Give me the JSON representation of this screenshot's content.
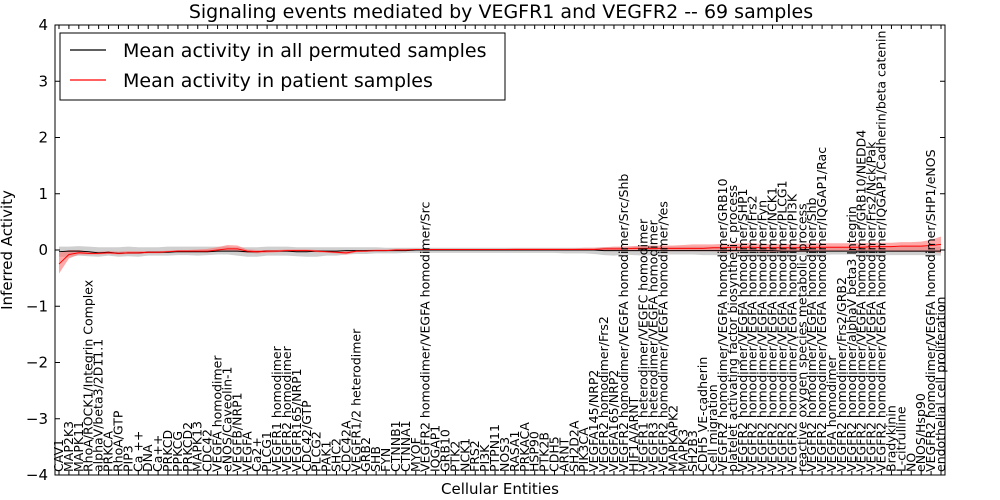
{
  "chart_data": {
    "type": "line",
    "title": "Signaling events mediated by VEGFR1 and VEGFR2 -- 69 samples",
    "xlabel": "Cellular Entities",
    "ylabel": "Inferred Activity",
    "ylim": [
      -4,
      4
    ],
    "yticks": [
      -4,
      -3,
      -2,
      -1,
      0,
      1,
      2,
      3,
      4
    ],
    "grid": false,
    "legend_position": "top-left",
    "colors": {
      "permuted_line": "#000000",
      "patient_line": "#ff0000",
      "permuted_band": "#bfbfbf",
      "patient_band": "#ff7070"
    },
    "categories": [
      "CAV1",
      "MAP2K3",
      "MAPK11",
      "RhoA/ROCK1/Integrin Complex",
      "alphaV/beta3/2D11.1",
      "PRKCA",
      "RhoA/GTP",
      "PIP3",
      "Ca ++",
      "DNA",
      "Ca++",
      "PRKCD",
      "PPKCG",
      "PRKCD2",
      "MAPK13",
      "CDC42",
      "VEGFA homodimer",
      "eNOS/Caveolin-1",
      "VEGFB/NRP1",
      "VEGFA",
      "Ca2+",
      "PLCG1",
      "VEGFR1 homodimer",
      "VEGFR2 homodimer",
      "VEGFR165/NRP1",
      "CDC42/GTP",
      "PLCG2",
      "PAK1",
      "SHC2",
      "CDC42A",
      "VEGFR1/2 heterodimer",
      "GRB2",
      "SHB",
      "FYN",
      "CTNNB1",
      "CTNNA1",
      "MYOF",
      "VEGFR2 homodimer/VEGFA homodimer/Src",
      "IQGAP1",
      "GRB10",
      "PTK2",
      "NCK1",
      "FRS2",
      "PI3K",
      "PTPN11",
      "NOS3",
      "RASA1",
      "PRKACA",
      "HSP90",
      "PTK2B",
      "CDH5",
      "ARNT",
      "SH2D2A",
      "PIK3CA",
      "VEGFA145/NRP2",
      "VEGFR2 homodimer/Frs2",
      "VEGFA165/NRP2",
      "VEGFR2 homodimer/VEGFA homodimer/Src/Shb",
      "HIF1A/ARNT",
      "VEGFR1 heterodimer/VEGFC homodimer",
      "VEGFR3 heterodimer/VEGFA homodimer",
      "VEGFR2 homodimer/VEGFA homodimer/Yes",
      "MAPKAPK2",
      "MAPK3",
      "SH2B3",
      "CDH5 VE-cadherin",
      "Cell migration",
      "VEGFR2 homodimer/VEGFA homodimer/GRB10",
      "platelet activating factor biosynthetic process",
      "VEGFR2 homodimer/VEGFA homodimer/SHP1",
      "VEGFR2 homodimer/VEGFA homodimer/Frs2",
      "VEGFR2 homodimer/VEGFA homodimer/Fyn",
      "VEGFR2 homodimer/VEGFA homodimer/NCK1",
      "VEGFR2 homodimer/VEGFA homodimer/PLCG1",
      "VEGFR2 homodimer/VEGFA homodimer/PI3K",
      "reactive oxygen species metabolic process",
      "VEGFR2 homodimer/VEGFA homodimer/Shb",
      "VEGFR2 homodimer/VEGFA homodimer/IQGAP1/Rac",
      "VEGFA homodimer",
      "VEGFR2 homodimer/Frs2/GRB2",
      "VEGFR2 homodimer/alphaV beta3 Integrin",
      "VEGFR2 homodimer/VEGFA homodimer/GRB10/NEDD4",
      "VEGFR2 homodimer/VEGFA homodimer/Frs2/Nck/Pak",
      "VEGFR2 homodimer/VEGFA homodimer/IQGAP1/Cadherin/beta catenin",
      "Bradykinin",
      "L-citrulline",
      "NO",
      "eNOS/Hsp90",
      "VEGFR2 homodimer/VEGFA homodimer/SHP1/eNOS",
      "endothelial cell proliferation"
    ],
    "series": [
      {
        "name": "Mean activity in all permuted samples",
        "values": [
          -0.03,
          -0.02,
          -0.02,
          -0.03,
          -0.05,
          -0.04,
          -0.06,
          -0.05,
          -0.05,
          -0.04,
          -0.04,
          -0.04,
          -0.03,
          -0.03,
          -0.03,
          -0.03,
          -0.02,
          -0.02,
          -0.02,
          -0.03,
          -0.03,
          -0.02,
          -0.02,
          -0.02,
          -0.03,
          -0.03,
          -0.02,
          -0.02,
          -0.02,
          -0.01,
          -0.01,
          -0.01,
          -0.01,
          -0.01,
          -0.01,
          -0.01,
          0.0,
          0.0,
          0.0,
          0.0,
          0.0,
          0.0,
          0.0,
          0.0,
          0.0,
          0.0,
          0.0,
          0.0,
          0.0,
          0.0,
          0.0,
          0.0,
          0.0,
          0.0,
          0.0,
          -0.01,
          -0.01,
          -0.01,
          -0.01,
          -0.01,
          -0.01,
          -0.01,
          -0.01,
          -0.01,
          -0.01,
          -0.01,
          -0.01,
          -0.01,
          -0.01,
          -0.01,
          -0.01,
          -0.01,
          -0.01,
          -0.02,
          -0.02,
          -0.02,
          -0.02,
          -0.02,
          -0.02,
          -0.02,
          -0.02,
          -0.02,
          -0.02,
          -0.02,
          -0.02,
          -0.02,
          -0.02,
          -0.02,
          -0.02,
          -0.02
        ]
      },
      {
        "name": "Mean activity in patient samples",
        "values": [
          -0.25,
          -0.08,
          -0.05,
          -0.06,
          -0.06,
          -0.05,
          -0.06,
          -0.05,
          -0.05,
          -0.04,
          -0.04,
          -0.03,
          -0.02,
          -0.02,
          -0.02,
          -0.02,
          0.0,
          0.02,
          0.02,
          -0.02,
          -0.03,
          -0.02,
          -0.02,
          -0.01,
          -0.01,
          -0.01,
          -0.02,
          -0.03,
          -0.04,
          -0.05,
          -0.02,
          -0.02,
          -0.01,
          -0.01,
          0.0,
          0.0,
          0.01,
          0.01,
          0.01,
          0.01,
          0.01,
          0.01,
          0.01,
          0.01,
          0.01,
          0.01,
          0.01,
          0.01,
          0.01,
          0.01,
          0.01,
          0.01,
          0.01,
          0.01,
          0.01,
          0.02,
          0.02,
          0.02,
          0.03,
          0.03,
          0.03,
          0.03,
          0.03,
          0.03,
          0.03,
          0.03,
          0.04,
          0.04,
          0.05,
          0.05,
          0.05,
          0.04,
          0.04,
          0.04,
          0.04,
          0.04,
          0.05,
          0.05,
          0.05,
          0.05,
          0.05,
          0.05,
          0.06,
          0.06,
          0.06,
          0.07,
          0.07,
          0.07,
          0.08,
          0.1
        ]
      }
    ],
    "bands": {
      "permuted_low": [
        -0.12,
        -0.12,
        -0.1,
        -0.11,
        -0.12,
        -0.1,
        -0.12,
        -0.11,
        -0.12,
        -0.1,
        -0.1,
        -0.1,
        -0.09,
        -0.09,
        -0.1,
        -0.09,
        -0.08,
        -0.08,
        -0.1,
        -0.12,
        -0.12,
        -0.1,
        -0.1,
        -0.1,
        -0.11,
        -0.12,
        -0.12,
        -0.1,
        -0.1,
        -0.08,
        -0.07,
        -0.07,
        -0.06,
        -0.06,
        -0.06,
        -0.05,
        -0.05,
        -0.05,
        -0.05,
        -0.05,
        -0.05,
        -0.05,
        -0.05,
        -0.05,
        -0.05,
        -0.05,
        -0.05,
        -0.05,
        -0.05,
        -0.05,
        -0.05,
        -0.06,
        -0.06,
        -0.06,
        -0.07,
        -0.09,
        -0.1,
        -0.08,
        -0.09,
        -0.1,
        -0.09,
        -0.08,
        -0.08,
        -0.08,
        -0.08,
        -0.09,
        -0.09,
        -0.09,
        -0.08,
        -0.08,
        -0.09,
        -0.09,
        -0.09,
        -0.1,
        -0.08,
        -0.09,
        -0.1,
        -0.09,
        -0.08,
        -0.08,
        -0.08,
        -0.09,
        -0.09,
        -0.09,
        -0.09,
        -0.09,
        -0.09,
        -0.09,
        -0.09,
        -0.1
      ],
      "permuted_high": [
        0.06,
        0.06,
        0.07,
        0.06,
        0.05,
        0.05,
        0.05,
        0.06,
        0.05,
        0.05,
        0.05,
        0.06,
        0.06,
        0.06,
        0.06,
        0.06,
        0.06,
        0.06,
        0.05,
        0.05,
        0.05,
        0.06,
        0.06,
        0.06,
        0.05,
        0.05,
        0.05,
        0.05,
        0.05,
        0.05,
        0.05,
        0.05,
        0.05,
        0.04,
        0.04,
        0.04,
        0.04,
        0.04,
        0.04,
        0.04,
        0.04,
        0.04,
        0.04,
        0.04,
        0.04,
        0.04,
        0.04,
        0.04,
        0.04,
        0.04,
        0.04,
        0.04,
        0.04,
        0.04,
        0.04,
        0.05,
        0.05,
        0.06,
        0.06,
        0.06,
        0.06,
        0.06,
        0.06,
        0.06,
        0.06,
        0.06,
        0.06,
        0.06,
        0.06,
        0.06,
        0.06,
        0.06,
        0.06,
        0.06,
        0.06,
        0.06,
        0.06,
        0.06,
        0.06,
        0.06,
        0.06,
        0.06,
        0.06,
        0.06,
        0.06,
        0.06,
        0.06,
        0.06,
        0.06,
        0.06
      ],
      "patient_low": [
        -0.42,
        -0.15,
        -0.08,
        -0.08,
        -0.08,
        -0.07,
        -0.08,
        -0.07,
        -0.07,
        -0.06,
        -0.06,
        -0.05,
        -0.04,
        -0.04,
        -0.04,
        -0.04,
        -0.03,
        -0.02,
        -0.03,
        -0.05,
        -0.06,
        -0.05,
        -0.04,
        -0.03,
        -0.03,
        -0.03,
        -0.04,
        -0.05,
        -0.06,
        -0.08,
        -0.04,
        -0.03,
        -0.02,
        -0.02,
        -0.01,
        -0.01,
        0.0,
        0.0,
        0.0,
        0.0,
        0.0,
        0.0,
        0.0,
        0.0,
        0.0,
        0.0,
        0.0,
        0.0,
        0.0,
        0.0,
        0.0,
        0.0,
        0.0,
        0.0,
        0.0,
        -0.01,
        -0.01,
        -0.01,
        -0.01,
        -0.02,
        -0.01,
        -0.02,
        -0.02,
        -0.02,
        -0.02,
        -0.02,
        -0.02,
        -0.03,
        -0.03,
        -0.02,
        -0.02,
        -0.03,
        -0.03,
        -0.03,
        -0.03,
        -0.03,
        -0.03,
        -0.02,
        -0.02,
        -0.02,
        -0.02,
        -0.02,
        -0.02,
        -0.02,
        -0.03,
        -0.03,
        -0.03,
        -0.03,
        -0.03,
        -0.05
      ],
      "patient_high": [
        -0.05,
        0.0,
        0.0,
        -0.03,
        -0.03,
        -0.02,
        -0.03,
        -0.02,
        -0.02,
        -0.02,
        -0.02,
        -0.01,
        0.0,
        0.0,
        0.01,
        0.02,
        0.05,
        0.09,
        0.08,
        0.01,
        0.0,
        0.0,
        0.0,
        0.01,
        0.01,
        0.01,
        0.0,
        -0.01,
        -0.02,
        -0.02,
        0.0,
        0.0,
        0.01,
        0.01,
        0.02,
        0.02,
        0.02,
        0.02,
        0.02,
        0.02,
        0.02,
        0.02,
        0.02,
        0.02,
        0.02,
        0.02,
        0.03,
        0.03,
        0.03,
        0.03,
        0.03,
        0.03,
        0.03,
        0.04,
        0.04,
        0.05,
        0.06,
        0.06,
        0.07,
        0.08,
        0.08,
        0.08,
        0.08,
        0.09,
        0.1,
        0.1,
        0.1,
        0.11,
        0.11,
        0.12,
        0.12,
        0.11,
        0.11,
        0.11,
        0.11,
        0.11,
        0.12,
        0.12,
        0.12,
        0.12,
        0.12,
        0.12,
        0.13,
        0.13,
        0.13,
        0.14,
        0.14,
        0.15,
        0.18,
        0.24
      ]
    }
  }
}
